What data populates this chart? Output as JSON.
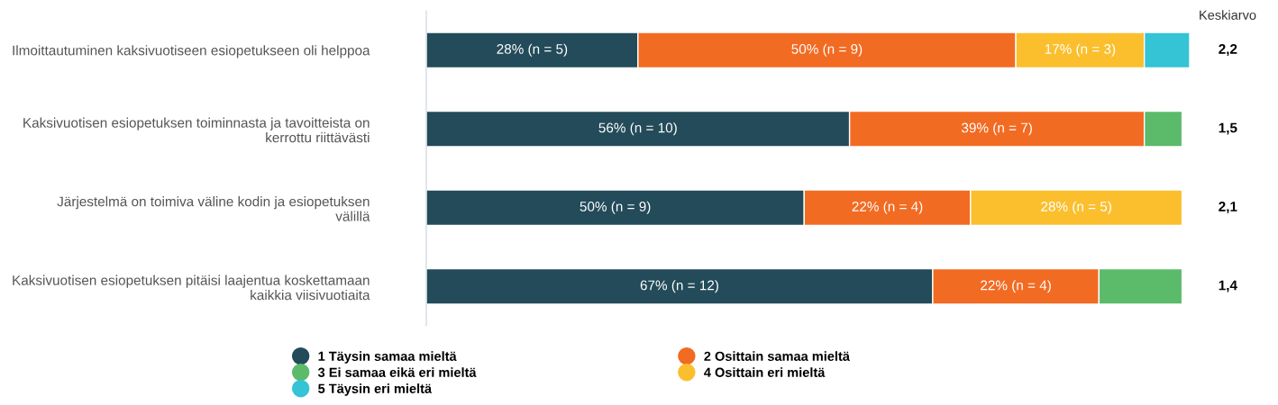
{
  "chart_data": {
    "type": "bar",
    "orientation": "horizontal",
    "stacked": true,
    "categories": [
      "Ilmoittautuminen kaksivuotiseen esiopetukseen oli helppoa",
      "Kaksivuotisen esiopetuksen toiminnasta ja tavoitteista on\nkerrottu riittävästi",
      "Järjestelmä on toimiva väline kodin ja esiopetuksen\nvälillä",
      "Kaksivuotisen esiopetuksen pitäisi laajentua koskettamaan\nkaikkia viisivuotiaita"
    ],
    "series": [
      {
        "name": "1 Täysin samaa mieltä",
        "color": "#234b5a",
        "values": [
          28,
          56,
          50,
          67
        ],
        "value_labels": [
          "28% (n = 5)",
          "56% (n = 10)",
          "50% (n = 9)",
          "67% (n = 12)"
        ]
      },
      {
        "name": "2 Osittain samaa mieltä",
        "color": "#f26b22",
        "values": [
          50,
          39,
          22,
          22
        ],
        "value_labels": [
          "50% (n = 9)",
          "39% (n = 7)",
          "22% (n = 4)",
          "22% (n = 4)"
        ]
      },
      {
        "name": "3 Ei samaa eikä eri mieltä",
        "color": "#5bbb6a",
        "values": [
          null,
          5,
          null,
          11
        ],
        "value_labels": [
          null,
          null,
          null,
          null
        ]
      },
      {
        "name": "4 Osittain eri mieltä",
        "color": "#fbbf2e",
        "values": [
          17,
          null,
          28,
          null
        ],
        "value_labels": [
          "17% (n = 3)",
          null,
          "28% (n = 5)",
          null
        ]
      },
      {
        "name": "5 Täysin eri mieltä",
        "color": "#35c3d6",
        "values": [
          6,
          null,
          null,
          null
        ],
        "value_labels": [
          null,
          null,
          null,
          null
        ]
      }
    ],
    "annotations": [
      "Keskiarvo",
      "2,2",
      "1,5",
      "2,1",
      "1,4"
    ],
    "legend": "bottom",
    "grid": false
  }
}
